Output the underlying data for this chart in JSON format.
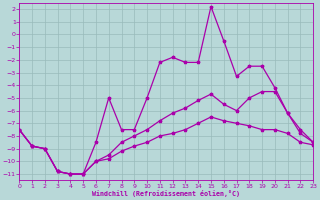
{
  "xlabel": "Windchill (Refroidissement éolien,°C)",
  "xlim": [
    0,
    23
  ],
  "ylim": [
    -11.5,
    2.5
  ],
  "yticks": [
    2,
    1,
    0,
    -1,
    -2,
    -3,
    -4,
    -5,
    -6,
    -7,
    -8,
    -9,
    -10,
    -11
  ],
  "xticks": [
    0,
    1,
    2,
    3,
    4,
    5,
    6,
    7,
    8,
    9,
    10,
    11,
    12,
    13,
    14,
    15,
    16,
    17,
    18,
    19,
    20,
    21,
    22,
    23
  ],
  "bg_color": "#b8d8d8",
  "grid_color": "#99bbbb",
  "line_color": "#aa00aa",
  "line1_x": [
    0,
    1,
    2,
    3,
    4,
    5,
    6,
    7,
    8,
    9,
    10,
    11,
    12,
    13,
    14,
    15,
    16,
    17,
    18,
    19,
    20,
    21,
    22,
    23
  ],
  "line1_y": [
    -7.5,
    -8.8,
    -9.0,
    -10.8,
    -11.0,
    -11.0,
    -8.5,
    -5.0,
    -7.5,
    -7.5,
    -5.0,
    -2.2,
    -1.8,
    -2.2,
    -2.2,
    2.2,
    -0.5,
    -3.3,
    -2.5,
    -2.5,
    -4.2,
    -6.2,
    -7.8,
    -8.5
  ],
  "line2_x": [
    0,
    1,
    2,
    3,
    4,
    5,
    6,
    7,
    8,
    9,
    10,
    11,
    12,
    13,
    14,
    15,
    16,
    17,
    18,
    19,
    20,
    21,
    22,
    23
  ],
  "line2_y": [
    -7.5,
    -8.8,
    -9.0,
    -10.8,
    -11.0,
    -11.0,
    -10.0,
    -9.5,
    -8.5,
    -8.0,
    -7.5,
    -6.8,
    -6.2,
    -5.8,
    -5.2,
    -4.7,
    -5.5,
    -6.0,
    -5.0,
    -4.5,
    -4.5,
    -6.2,
    -7.5,
    -8.5
  ],
  "line3_x": [
    0,
    1,
    2,
    3,
    4,
    5,
    6,
    7,
    8,
    9,
    10,
    11,
    12,
    13,
    14,
    15,
    16,
    17,
    18,
    19,
    20,
    21,
    22,
    23
  ],
  "line3_y": [
    -7.5,
    -8.8,
    -9.0,
    -10.8,
    -11.0,
    -11.0,
    -10.0,
    -9.8,
    -9.2,
    -8.8,
    -8.5,
    -8.0,
    -7.8,
    -7.5,
    -7.0,
    -6.5,
    -6.8,
    -7.0,
    -7.2,
    -7.5,
    -7.5,
    -7.8,
    -8.5,
    -8.7
  ]
}
